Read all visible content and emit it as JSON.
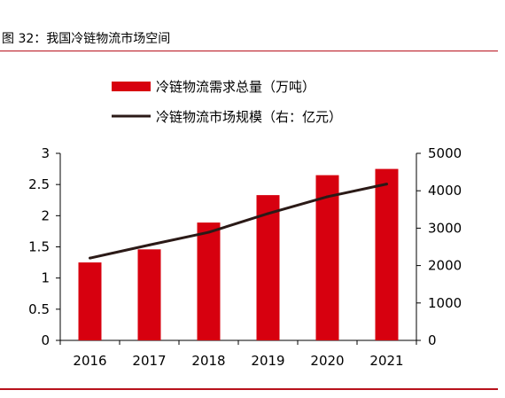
{
  "figure_title": "图 32：我国冷链物流市场空间",
  "colors": {
    "bar": "#d7000f",
    "line": "#2b1a17",
    "rule": "#b8121c"
  },
  "chart_data": {
    "type": "bar",
    "categories": [
      "2016",
      "2017",
      "2018",
      "2019",
      "2020",
      "2021"
    ],
    "series": [
      {
        "name": "冷链物流需求总量（万吨）",
        "type": "bar",
        "axis": "left",
        "values": [
          1.25,
          1.46,
          1.89,
          2.33,
          2.65,
          2.75
        ]
      },
      {
        "name": "冷链物流市场规模（右：亿元）",
        "type": "line",
        "axis": "right",
        "values": [
          2200,
          2550,
          2890,
          3390,
          3840,
          4180
        ]
      }
    ],
    "left_axis": {
      "ylim": [
        0,
        3
      ],
      "ticks": [
        "0",
        "0.5",
        "1",
        "1.5",
        "2",
        "2.5",
        "3"
      ]
    },
    "right_axis": {
      "ylim": [
        0,
        5000
      ],
      "ticks": [
        "0",
        "1000",
        "2000",
        "3000",
        "4000",
        "5000"
      ]
    },
    "legend_position": "top",
    "grid": false
  }
}
